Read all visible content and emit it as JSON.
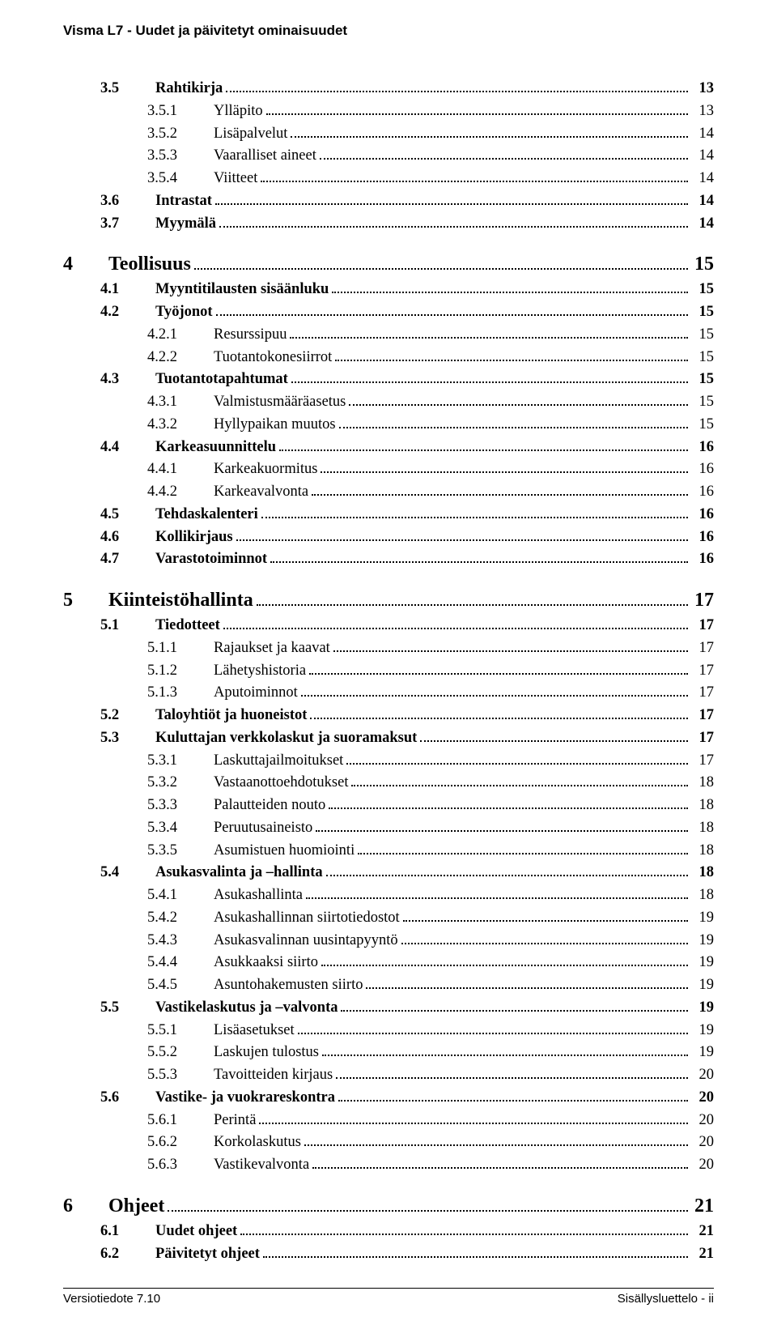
{
  "header": "Visma L7 - Uudet ja päivitetyt ominaisuudet",
  "footer_left": "Versiotiedote 7.10",
  "footer_right": "Sisällysluettelo - ii",
  "toc": [
    {
      "level": 1,
      "num": "3.5",
      "title": "Rahtikirja",
      "page": "13"
    },
    {
      "level": 2,
      "num": "3.5.1",
      "title": "Ylläpito",
      "page": "13"
    },
    {
      "level": 2,
      "num": "3.5.2",
      "title": "Lisäpalvelut",
      "page": "14"
    },
    {
      "level": 2,
      "num": "3.5.3",
      "title": "Vaaralliset aineet",
      "page": "14"
    },
    {
      "level": 2,
      "num": "3.5.4",
      "title": "Viitteet",
      "page": "14"
    },
    {
      "level": 1,
      "num": "3.6",
      "title": "Intrastat",
      "page": "14"
    },
    {
      "level": 1,
      "num": "3.7",
      "title": "Myymälä",
      "page": "14"
    },
    {
      "level": 0,
      "num": "4",
      "title": "Teollisuus",
      "page": "15"
    },
    {
      "level": 1,
      "num": "4.1",
      "title": "Myyntitilausten sisäänluku",
      "page": "15"
    },
    {
      "level": 1,
      "num": "4.2",
      "title": "Työjonot",
      "page": "15"
    },
    {
      "level": 2,
      "num": "4.2.1",
      "title": "Resurssipuu",
      "page": "15"
    },
    {
      "level": 2,
      "num": "4.2.2",
      "title": "Tuotantokonesiirrot",
      "page": "15"
    },
    {
      "level": 1,
      "num": "4.3",
      "title": "Tuotantotapahtumat",
      "page": "15"
    },
    {
      "level": 2,
      "num": "4.3.1",
      "title": "Valmistusmääräasetus",
      "page": "15"
    },
    {
      "level": 2,
      "num": "4.3.2",
      "title": "Hyllypaikan muutos",
      "page": "15"
    },
    {
      "level": 1,
      "num": "4.4",
      "title": "Karkeasuunnittelu",
      "page": "16"
    },
    {
      "level": 2,
      "num": "4.4.1",
      "title": "Karkeakuormitus",
      "page": "16"
    },
    {
      "level": 2,
      "num": "4.4.2",
      "title": "Karkeavalvonta",
      "page": "16"
    },
    {
      "level": 1,
      "num": "4.5",
      "title": "Tehdaskalenteri",
      "page": "16"
    },
    {
      "level": 1,
      "num": "4.6",
      "title": "Kollikirjaus",
      "page": "16"
    },
    {
      "level": 1,
      "num": "4.7",
      "title": "Varastotoiminnot",
      "page": "16"
    },
    {
      "level": 0,
      "num": "5",
      "title": "Kiinteistöhallinta",
      "page": "17"
    },
    {
      "level": 1,
      "num": "5.1",
      "title": "Tiedotteet",
      "page": "17"
    },
    {
      "level": 2,
      "num": "5.1.1",
      "title": "Rajaukset ja kaavat",
      "page": "17"
    },
    {
      "level": 2,
      "num": "5.1.2",
      "title": "Lähetyshistoria",
      "page": "17"
    },
    {
      "level": 2,
      "num": "5.1.3",
      "title": "Aputoiminnot",
      "page": "17"
    },
    {
      "level": 1,
      "num": "5.2",
      "title": "Taloyhtiöt ja huoneistot",
      "page": "17"
    },
    {
      "level": 1,
      "num": "5.3",
      "title": "Kuluttajan verkkolaskut ja suoramaksut",
      "page": "17"
    },
    {
      "level": 2,
      "num": "5.3.1",
      "title": "Laskuttajailmoitukset",
      "page": "17"
    },
    {
      "level": 2,
      "num": "5.3.2",
      "title": "Vastaanottoehdotukset",
      "page": "18"
    },
    {
      "level": 2,
      "num": "5.3.3",
      "title": "Palautteiden nouto",
      "page": "18"
    },
    {
      "level": 2,
      "num": "5.3.4",
      "title": "Peruutusaineisto",
      "page": "18"
    },
    {
      "level": 2,
      "num": "5.3.5",
      "title": "Asumistuen huomiointi",
      "page": "18"
    },
    {
      "level": 1,
      "num": "5.4",
      "title": "Asukasvalinta ja –hallinta",
      "page": "18"
    },
    {
      "level": 2,
      "num": "5.4.1",
      "title": "Asukashallinta",
      "page": "18"
    },
    {
      "level": 2,
      "num": "5.4.2",
      "title": "Asukashallinnan siirtotiedostot",
      "page": "19"
    },
    {
      "level": 2,
      "num": "5.4.3",
      "title": "Asukasvalinnan uusintapyyntö",
      "page": "19"
    },
    {
      "level": 2,
      "num": "5.4.4",
      "title": "Asukkaaksi siirto",
      "page": "19"
    },
    {
      "level": 2,
      "num": "5.4.5",
      "title": "Asuntohakemusten siirto",
      "page": "19"
    },
    {
      "level": 1,
      "num": "5.5",
      "title": "Vastikelaskutus ja –valvonta",
      "page": "19"
    },
    {
      "level": 2,
      "num": "5.5.1",
      "title": "Lisäasetukset",
      "page": "19"
    },
    {
      "level": 2,
      "num": "5.5.2",
      "title": "Laskujen tulostus",
      "page": "19"
    },
    {
      "level": 2,
      "num": "5.5.3",
      "title": "Tavoitteiden kirjaus",
      "page": "20"
    },
    {
      "level": 1,
      "num": "5.6",
      "title": "Vastike- ja vuokrareskontra",
      "page": "20"
    },
    {
      "level": 2,
      "num": "5.6.1",
      "title": "Perintä",
      "page": "20"
    },
    {
      "level": 2,
      "num": "5.6.2",
      "title": "Korkolaskutus",
      "page": "20"
    },
    {
      "level": 2,
      "num": "5.6.3",
      "title": "Vastikevalvonta",
      "page": "20"
    },
    {
      "level": 0,
      "num": "6",
      "title": "Ohjeet",
      "page": "21"
    },
    {
      "level": 1,
      "num": "6.1",
      "title": "Uudet ohjeet",
      "page": "21"
    },
    {
      "level": 1,
      "num": "6.2",
      "title": "Päivitetyt ohjeet",
      "page": "21"
    }
  ]
}
